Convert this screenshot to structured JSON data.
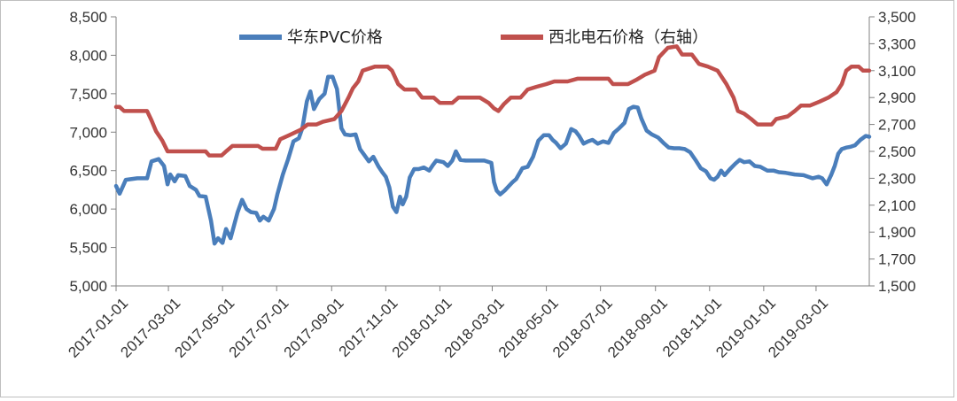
{
  "chart_data": {
    "type": "line",
    "title": "",
    "xlabel": "",
    "ylabel": "",
    "x_range": [
      "2017-01-01",
      "2019-04-30"
    ],
    "x_tick_labels": [
      "2017-01-01",
      "2017-03-01",
      "2017-05-01",
      "2017-07-01",
      "2017-09-01",
      "2017-11-01",
      "2018-01-01",
      "2018-03-01",
      "2018-05-01",
      "2018-07-01",
      "2018-09-01",
      "2018-11-01",
      "2019-01-01",
      "2019-03-01"
    ],
    "y_left": {
      "range": [
        5000,
        8500
      ],
      "ticks": [
        5000,
        5500,
        6000,
        6500,
        7000,
        7500,
        8000,
        8500
      ],
      "tick_labels": [
        "5,000",
        "5,500",
        "6,000",
        "6,500",
        "7,000",
        "7,500",
        "8,000",
        "8,500"
      ]
    },
    "y_right": {
      "range": [
        1500,
        3500
      ],
      "ticks": [
        1500,
        1700,
        1900,
        2100,
        2300,
        2500,
        2700,
        2900,
        3100,
        3300,
        3500
      ],
      "tick_labels": [
        "1,500",
        "1,700",
        "1,900",
        "2,100",
        "2,300",
        "2,500",
        "2,700",
        "2,900",
        "3,100",
        "3,300",
        "3,500"
      ]
    },
    "grid": false,
    "legend_position": "top",
    "series": [
      {
        "name": "华东PVC价格",
        "axis": "left",
        "color": "#4a7ebb",
        "points": [
          [
            "2017-01-01",
            6300
          ],
          [
            "2017-01-05",
            6200
          ],
          [
            "2017-01-12",
            6380
          ],
          [
            "2017-01-25",
            6400
          ],
          [
            "2017-02-05",
            6400
          ],
          [
            "2017-02-10",
            6620
          ],
          [
            "2017-02-18",
            6650
          ],
          [
            "2017-02-24",
            6560
          ],
          [
            "2017-02-28",
            6320
          ],
          [
            "2017-03-03",
            6450
          ],
          [
            "2017-03-08",
            6360
          ],
          [
            "2017-03-12",
            6440
          ],
          [
            "2017-03-20",
            6430
          ],
          [
            "2017-03-25",
            6300
          ],
          [
            "2017-04-01",
            6250
          ],
          [
            "2017-04-05",
            6170
          ],
          [
            "2017-04-12",
            6160
          ],
          [
            "2017-04-18",
            5850
          ],
          [
            "2017-04-22",
            5550
          ],
          [
            "2017-04-26",
            5620
          ],
          [
            "2017-05-01",
            5560
          ],
          [
            "2017-05-05",
            5740
          ],
          [
            "2017-05-10",
            5620
          ],
          [
            "2017-05-14",
            5790
          ],
          [
            "2017-05-18",
            5960
          ],
          [
            "2017-05-23",
            6120
          ],
          [
            "2017-05-28",
            6000
          ],
          [
            "2017-06-02",
            5960
          ],
          [
            "2017-06-08",
            5950
          ],
          [
            "2017-06-12",
            5850
          ],
          [
            "2017-06-16",
            5900
          ],
          [
            "2017-06-22",
            5850
          ],
          [
            "2017-06-28",
            6000
          ],
          [
            "2017-07-02",
            6200
          ],
          [
            "2017-07-08",
            6450
          ],
          [
            "2017-07-14",
            6650
          ],
          [
            "2017-07-20",
            6880
          ],
          [
            "2017-07-26",
            6920
          ],
          [
            "2017-07-30",
            7050
          ],
          [
            "2017-08-04",
            7400
          ],
          [
            "2017-08-08",
            7530
          ],
          [
            "2017-08-12",
            7300
          ],
          [
            "2017-08-18",
            7430
          ],
          [
            "2017-08-24",
            7500
          ],
          [
            "2017-08-28",
            7720
          ],
          [
            "2017-09-02",
            7720
          ],
          [
            "2017-09-07",
            7560
          ],
          [
            "2017-09-12",
            7050
          ],
          [
            "2017-09-16",
            6970
          ],
          [
            "2017-09-22",
            6960
          ],
          [
            "2017-09-28",
            6970
          ],
          [
            "2017-10-03",
            6780
          ],
          [
            "2017-10-08",
            6700
          ],
          [
            "2017-10-13",
            6620
          ],
          [
            "2017-10-18",
            6680
          ],
          [
            "2017-10-24",
            6550
          ],
          [
            "2017-10-28",
            6480
          ],
          [
            "2017-11-01",
            6420
          ],
          [
            "2017-11-05",
            6280
          ],
          [
            "2017-11-09",
            6030
          ],
          [
            "2017-11-13",
            5960
          ],
          [
            "2017-11-17",
            6160
          ],
          [
            "2017-11-20",
            6060
          ],
          [
            "2017-11-24",
            6160
          ],
          [
            "2017-11-28",
            6410
          ],
          [
            "2017-12-03",
            6520
          ],
          [
            "2017-12-08",
            6520
          ],
          [
            "2017-12-14",
            6540
          ],
          [
            "2017-12-20",
            6500
          ],
          [
            "2017-12-24",
            6570
          ],
          [
            "2017-12-28",
            6630
          ],
          [
            "2018-01-05",
            6610
          ],
          [
            "2018-01-10",
            6560
          ],
          [
            "2018-01-15",
            6630
          ],
          [
            "2018-01-19",
            6750
          ],
          [
            "2018-01-24",
            6640
          ],
          [
            "2018-01-30",
            6630
          ],
          [
            "2018-02-10",
            6630
          ],
          [
            "2018-02-20",
            6630
          ],
          [
            "2018-02-28",
            6600
          ],
          [
            "2018-03-03",
            6350
          ],
          [
            "2018-03-06",
            6240
          ],
          [
            "2018-03-10",
            6190
          ],
          [
            "2018-03-15",
            6240
          ],
          [
            "2018-03-19",
            6290
          ],
          [
            "2018-03-24",
            6350
          ],
          [
            "2018-03-28",
            6390
          ],
          [
            "2018-04-04",
            6530
          ],
          [
            "2018-04-10",
            6550
          ],
          [
            "2018-04-16",
            6680
          ],
          [
            "2018-04-22",
            6890
          ],
          [
            "2018-04-28",
            6960
          ],
          [
            "2018-05-04",
            6960
          ],
          [
            "2018-05-08",
            6900
          ],
          [
            "2018-05-12",
            6860
          ],
          [
            "2018-05-17",
            6790
          ],
          [
            "2018-05-23",
            6850
          ],
          [
            "2018-05-29",
            7040
          ],
          [
            "2018-06-03",
            7010
          ],
          [
            "2018-06-07",
            6950
          ],
          [
            "2018-06-12",
            6850
          ],
          [
            "2018-06-17",
            6880
          ],
          [
            "2018-06-22",
            6900
          ],
          [
            "2018-06-28",
            6850
          ],
          [
            "2018-07-04",
            6880
          ],
          [
            "2018-07-10",
            6860
          ],
          [
            "2018-07-16",
            6990
          ],
          [
            "2018-07-22",
            7050
          ],
          [
            "2018-07-28",
            7120
          ],
          [
            "2018-08-02",
            7300
          ],
          [
            "2018-08-07",
            7330
          ],
          [
            "2018-08-12",
            7320
          ],
          [
            "2018-08-16",
            7180
          ],
          [
            "2018-08-22",
            7020
          ],
          [
            "2018-08-28",
            6970
          ],
          [
            "2018-09-04",
            6930
          ],
          [
            "2018-09-10",
            6860
          ],
          [
            "2018-09-16",
            6800
          ],
          [
            "2018-09-22",
            6790
          ],
          [
            "2018-09-28",
            6790
          ],
          [
            "2018-10-04",
            6780
          ],
          [
            "2018-10-10",
            6740
          ],
          [
            "2018-10-16",
            6640
          ],
          [
            "2018-10-22",
            6530
          ],
          [
            "2018-10-28",
            6490
          ],
          [
            "2018-11-02",
            6400
          ],
          [
            "2018-11-06",
            6380
          ],
          [
            "2018-11-10",
            6420
          ],
          [
            "2018-11-14",
            6500
          ],
          [
            "2018-11-18",
            6440
          ],
          [
            "2018-11-24",
            6520
          ],
          [
            "2018-11-30",
            6590
          ],
          [
            "2018-12-05",
            6640
          ],
          [
            "2018-12-10",
            6610
          ],
          [
            "2018-12-16",
            6620
          ],
          [
            "2018-12-22",
            6560
          ],
          [
            "2018-12-28",
            6550
          ],
          [
            "2019-01-05",
            6500
          ],
          [
            "2019-01-12",
            6500
          ],
          [
            "2019-01-18",
            6480
          ],
          [
            "2019-01-26",
            6470
          ],
          [
            "2019-02-05",
            6450
          ],
          [
            "2019-02-15",
            6440
          ],
          [
            "2019-02-25",
            6400
          ],
          [
            "2019-03-04",
            6420
          ],
          [
            "2019-03-08",
            6400
          ],
          [
            "2019-03-13",
            6320
          ],
          [
            "2019-03-18",
            6440
          ],
          [
            "2019-03-22",
            6560
          ],
          [
            "2019-03-26",
            6720
          ],
          [
            "2019-03-30",
            6780
          ],
          [
            "2019-04-04",
            6800
          ],
          [
            "2019-04-09",
            6810
          ],
          [
            "2019-04-14",
            6830
          ],
          [
            "2019-04-20",
            6900
          ],
          [
            "2019-04-26",
            6950
          ],
          [
            "2019-04-30",
            6940
          ]
        ]
      },
      {
        "name": "西北电石价格（右轴）",
        "axis": "right",
        "color": "#c0504d",
        "points": [
          [
            "2017-01-01",
            2830
          ],
          [
            "2017-01-05",
            2830
          ],
          [
            "2017-01-10",
            2800
          ],
          [
            "2017-01-25",
            2800
          ],
          [
            "2017-02-05",
            2800
          ],
          [
            "2017-02-10",
            2730
          ],
          [
            "2017-02-15",
            2650
          ],
          [
            "2017-02-22",
            2580
          ],
          [
            "2017-02-28",
            2500
          ],
          [
            "2017-03-10",
            2500
          ],
          [
            "2017-04-12",
            2500
          ],
          [
            "2017-04-16",
            2470
          ],
          [
            "2017-04-30",
            2470
          ],
          [
            "2017-05-05",
            2500
          ],
          [
            "2017-05-12",
            2540
          ],
          [
            "2017-05-25",
            2540
          ],
          [
            "2017-06-10",
            2540
          ],
          [
            "2017-06-15",
            2520
          ],
          [
            "2017-06-30",
            2520
          ],
          [
            "2017-07-05",
            2590
          ],
          [
            "2017-07-15",
            2620
          ],
          [
            "2017-07-28",
            2660
          ],
          [
            "2017-08-05",
            2700
          ],
          [
            "2017-08-15",
            2700
          ],
          [
            "2017-08-22",
            2720
          ],
          [
            "2017-09-04",
            2740
          ],
          [
            "2017-09-12",
            2800
          ],
          [
            "2017-09-20",
            2900
          ],
          [
            "2017-09-25",
            2970
          ],
          [
            "2017-10-01",
            3020
          ],
          [
            "2017-10-06",
            3100
          ],
          [
            "2017-10-20",
            3130
          ],
          [
            "2017-11-03",
            3130
          ],
          [
            "2017-11-08",
            3100
          ],
          [
            "2017-11-15",
            3000
          ],
          [
            "2017-11-22",
            2960
          ],
          [
            "2017-12-05",
            2960
          ],
          [
            "2017-12-12",
            2900
          ],
          [
            "2017-12-25",
            2900
          ],
          [
            "2018-01-01",
            2860
          ],
          [
            "2018-01-15",
            2860
          ],
          [
            "2018-01-22",
            2900
          ],
          [
            "2018-02-15",
            2900
          ],
          [
            "2018-02-25",
            2860
          ],
          [
            "2018-03-03",
            2820
          ],
          [
            "2018-03-08",
            2800
          ],
          [
            "2018-03-14",
            2850
          ],
          [
            "2018-03-22",
            2900
          ],
          [
            "2018-04-02",
            2900
          ],
          [
            "2018-04-10",
            2960
          ],
          [
            "2018-04-20",
            2980
          ],
          [
            "2018-05-01",
            3000
          ],
          [
            "2018-05-10",
            3020
          ],
          [
            "2018-05-25",
            3020
          ],
          [
            "2018-06-05",
            3040
          ],
          [
            "2018-06-20",
            3040
          ],
          [
            "2018-07-10",
            3040
          ],
          [
            "2018-07-15",
            3000
          ],
          [
            "2018-08-01",
            3000
          ],
          [
            "2018-08-10",
            3030
          ],
          [
            "2018-08-20",
            3070
          ],
          [
            "2018-08-31",
            3100
          ],
          [
            "2018-09-05",
            3200
          ],
          [
            "2018-09-15",
            3270
          ],
          [
            "2018-09-25",
            3280
          ],
          [
            "2018-10-01",
            3220
          ],
          [
            "2018-10-12",
            3220
          ],
          [
            "2018-10-20",
            3150
          ],
          [
            "2018-10-30",
            3130
          ],
          [
            "2018-11-10",
            3100
          ],
          [
            "2018-11-20",
            3000
          ],
          [
            "2018-11-28",
            2900
          ],
          [
            "2018-12-03",
            2800
          ],
          [
            "2018-12-10",
            2780
          ],
          [
            "2018-12-18",
            2740
          ],
          [
            "2018-12-25",
            2700
          ],
          [
            "2019-01-10",
            2700
          ],
          [
            "2019-01-15",
            2740
          ],
          [
            "2019-01-28",
            2760
          ],
          [
            "2019-02-05",
            2800
          ],
          [
            "2019-02-12",
            2840
          ],
          [
            "2019-02-22",
            2840
          ],
          [
            "2019-03-05",
            2870
          ],
          [
            "2019-03-15",
            2900
          ],
          [
            "2019-03-24",
            2940
          ],
          [
            "2019-03-30",
            3000
          ],
          [
            "2019-04-04",
            3100
          ],
          [
            "2019-04-10",
            3130
          ],
          [
            "2019-04-18",
            3130
          ],
          [
            "2019-04-23",
            3100
          ],
          [
            "2019-04-30",
            3100
          ]
        ]
      }
    ]
  }
}
